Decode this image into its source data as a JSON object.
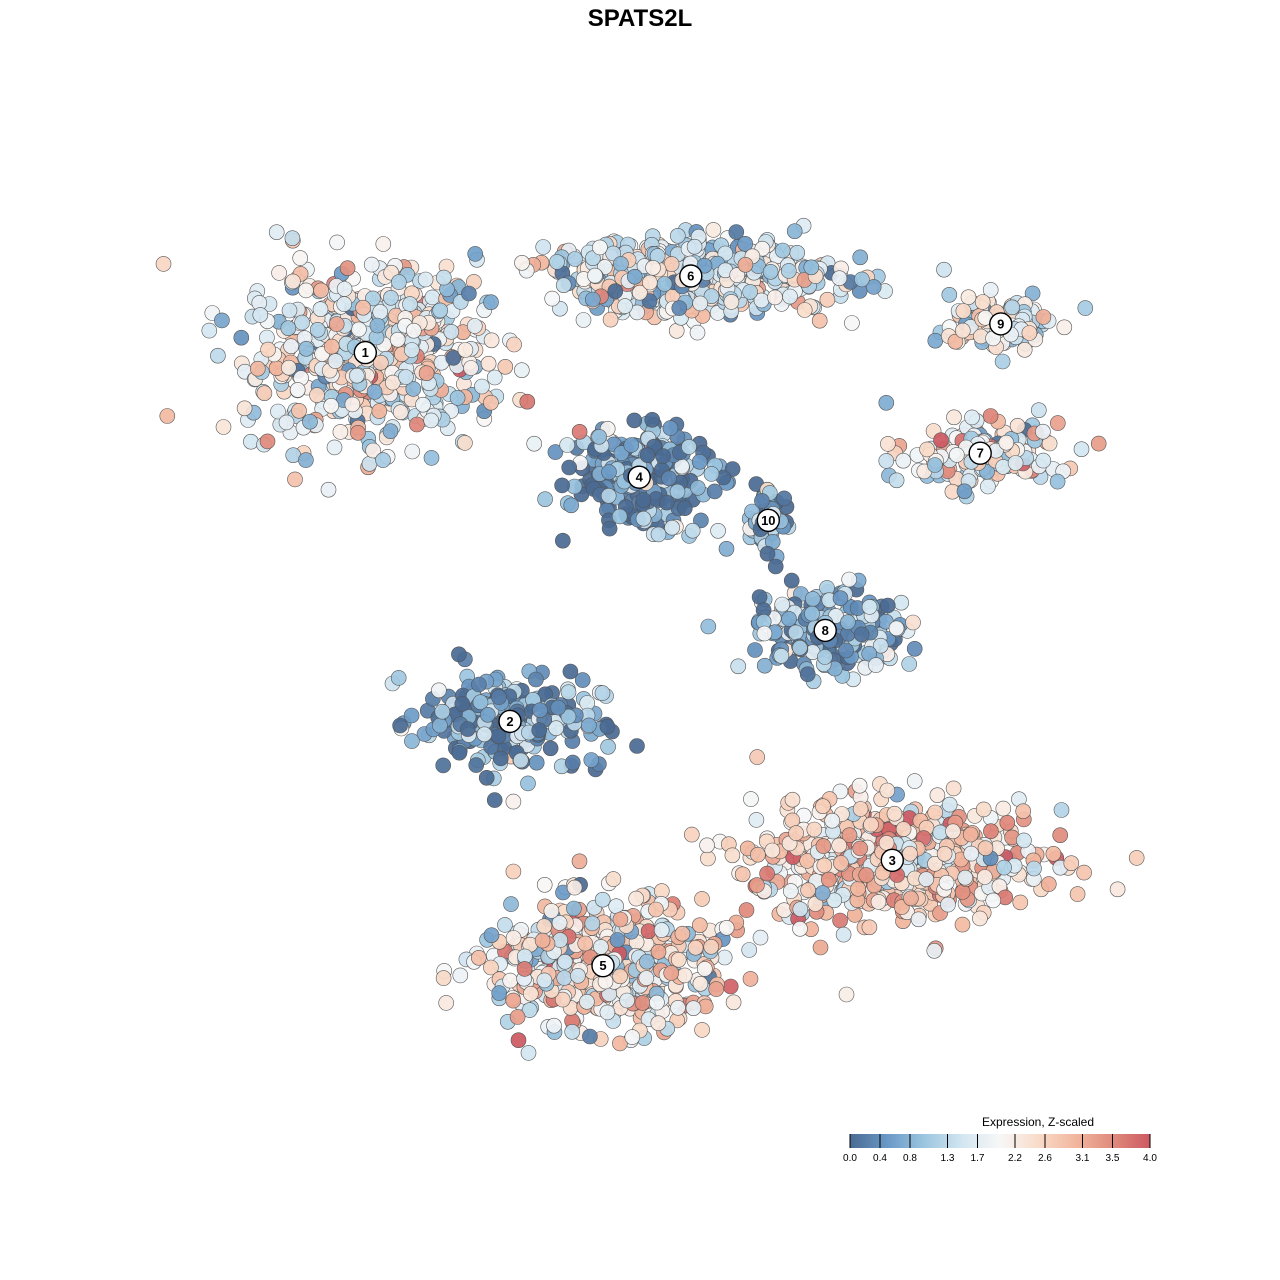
{
  "chart_data": {
    "type": "scatter",
    "title": "SPATS2L",
    "xlabel": "",
    "ylabel": "",
    "axes_visible": false,
    "grid": false,
    "point_count_note": "",
    "legend": {
      "title": "Expression, Z-scaled",
      "position": "bottom-right",
      "orientation": "horizontal",
      "range": [
        0.0,
        4.0
      ],
      "tick_values": [
        0.0,
        0.4,
        0.8,
        1.3,
        1.7,
        2.2,
        2.6,
        3.1,
        3.5,
        4.0
      ],
      "tick_labels": [
        "0.0",
        "0.4",
        "0.8",
        "1.3",
        "1.7",
        "2.2",
        "2.6",
        "3.1",
        "3.5",
        "4.0"
      ],
      "colors": [
        "#4a6a93",
        "#6a99c6",
        "#9cc6e0",
        "#d3e6f1",
        "#f7f7f7",
        "#f9dcca",
        "#f2b79e",
        "#e08b7c",
        "#cd5862"
      ]
    },
    "clusters": [
      {
        "label": "1",
        "x": -29.0,
        "y": 27.5,
        "mean_expression": 1.9,
        "spread": [
          10.5,
          8.0
        ],
        "n": 620
      },
      {
        "label": "6",
        "x": 2.5,
        "y": 35.5,
        "mean_expression": 1.7,
        "spread": [
          12.5,
          3.5
        ],
        "n": 600
      },
      {
        "label": "9",
        "x": 32.5,
        "y": 30.5,
        "mean_expression": 1.8,
        "spread": [
          4.5,
          2.5
        ],
        "n": 140
      },
      {
        "label": "7",
        "x": 30.5,
        "y": 17.0,
        "mean_expression": 2.0,
        "spread": [
          7.0,
          3.0
        ],
        "n": 170
      },
      {
        "label": "4",
        "x": -2.5,
        "y": 14.5,
        "mean_expression": 0.45,
        "spread": [
          6.0,
          4.5
        ],
        "n": 300
      },
      {
        "label": "10",
        "x": 10.0,
        "y": 10.0,
        "mean_expression": 0.7,
        "spread": [
          1.8,
          3.0
        ],
        "n": 60
      },
      {
        "label": "8",
        "x": 15.5,
        "y": -1.5,
        "mean_expression": 0.9,
        "spread": [
          7.0,
          4.0
        ],
        "n": 240
      },
      {
        "label": "2",
        "x": -15.0,
        "y": -11.0,
        "mean_expression": 0.55,
        "spread": [
          8.0,
          4.5
        ],
        "n": 260
      },
      {
        "label": "3",
        "x": 22.0,
        "y": -25.5,
        "mean_expression": 2.5,
        "spread": [
          12.0,
          5.5
        ],
        "n": 650
      },
      {
        "label": "5",
        "x": -6.0,
        "y": -36.5,
        "mean_expression": 2.2,
        "spread": [
          10.0,
          6.0
        ],
        "n": 560
      }
    ],
    "xlim": [
      -45,
      45
    ],
    "ylim": [
      -50,
      45
    ]
  }
}
